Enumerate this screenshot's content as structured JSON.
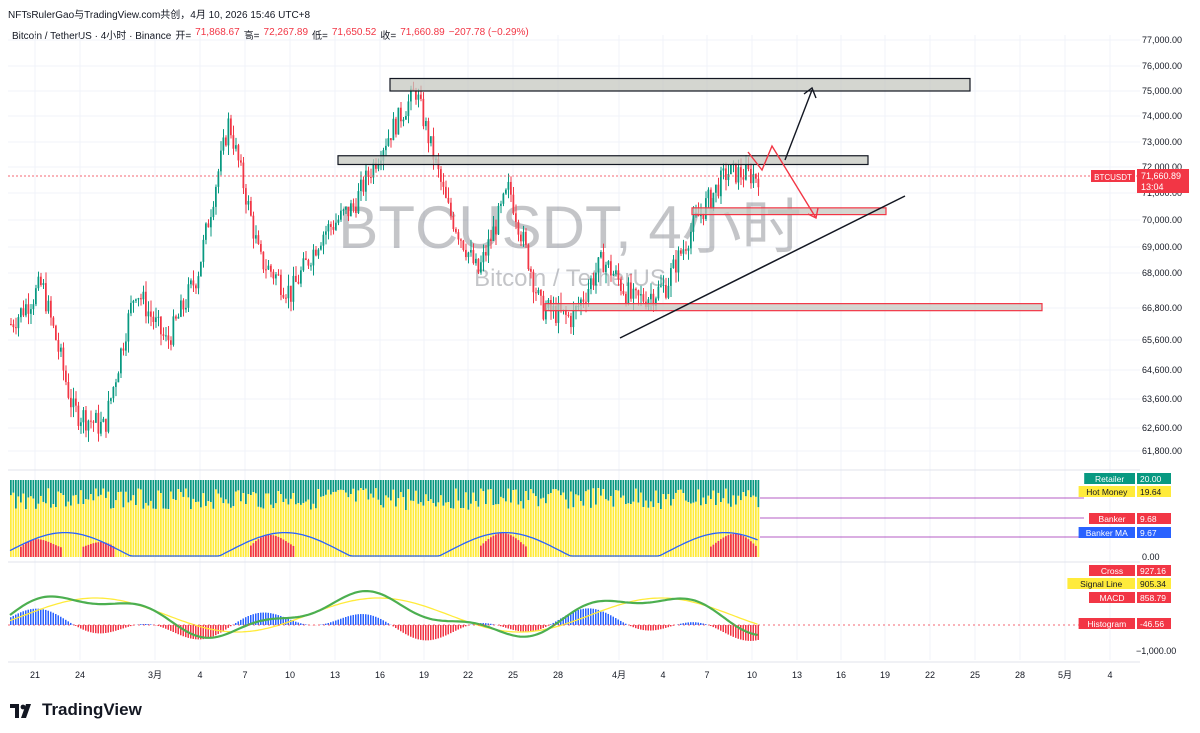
{
  "header": {
    "publisher_line": "NFTsRulerGao与TradingView.com共创，4月 10, 2026 15:46 UTC+8"
  },
  "symbol_bar": {
    "symbol": "Bitcoin / TetherUS · 4小时 · Binance",
    "open_label": "开=",
    "open_value": "71,868.67",
    "high_label": "高=",
    "high_value": "72,267.89",
    "low_label": "低=",
    "low_value": "71,650.52",
    "close_label": "收=",
    "close_value": "71,660.89",
    "change": "−207.78 (−0.29%)"
  },
  "watermark": {
    "main": "BTCUSDT, 4小时",
    "sub": "Bitcoin / TetherUS"
  },
  "price_badge": {
    "symbol": "BTCUSDT",
    "price": "71,660.89",
    "countdown": "13:04"
  },
  "brand": "TradingView",
  "colors": {
    "up": "#089981",
    "down": "#f23645",
    "zone_fill": "#c5c8c0",
    "zone_border": "#131722",
    "zone_border_red": "#f23645"
  },
  "chart_data": [
    {
      "type": "candlestick",
      "title": "Bitcoin / TetherUS · 4小时 · Binance",
      "y_axis_ticks": [
        "77,000.00",
        "76,000.00",
        "75,000.00",
        "74,000.00",
        "73,000.00",
        "72,000.00",
        "71,000.00",
        "70,000.00",
        "69,000.00",
        "68,000.00",
        "66,800.00",
        "65,600.00",
        "64,600.00",
        "63,600.00",
        "62,600.00",
        "61,800.00"
      ],
      "x_axis_ticks": [
        "21",
        "24",
        "3月",
        "4",
        "7",
        "10",
        "13",
        "16",
        "19",
        "22",
        "25",
        "28",
        "4月",
        "4",
        "7",
        "10",
        "13",
        "16",
        "19",
        "22",
        "25",
        "28",
        "5月",
        "4"
      ],
      "price_path_approx": [
        {
          "date": "2月20",
          "close": 66200
        },
        {
          "date": "2月22",
          "close": 67600
        },
        {
          "date": "2月24",
          "close": 63200
        },
        {
          "date": "2月25",
          "close": 62600
        },
        {
          "date": "2月27",
          "close": 67500
        },
        {
          "date": "3月1",
          "close": 65500
        },
        {
          "date": "3月3",
          "close": 68000
        },
        {
          "date": "3月5",
          "close": 73800
        },
        {
          "date": "3月7",
          "close": 68500
        },
        {
          "date": "3月9",
          "close": 67300
        },
        {
          "date": "3月11",
          "close": 69500
        },
        {
          "date": "3月13",
          "close": 70500
        },
        {
          "date": "3月16",
          "close": 73000
        },
        {
          "date": "3月17",
          "close": 75000
        },
        {
          "date": "3月19",
          "close": 70500
        },
        {
          "date": "3月22",
          "close": 68000
        },
        {
          "date": "3月25",
          "close": 71200
        },
        {
          "date": "3月27",
          "close": 66800
        },
        {
          "date": "3月29",
          "close": 66400
        },
        {
          "date": "4月1",
          "close": 68500
        },
        {
          "date": "4月3",
          "close": 67000
        },
        {
          "date": "4月5",
          "close": 67500
        },
        {
          "date": "4月7",
          "close": 70000
        },
        {
          "date": "4月8",
          "close": 71800
        },
        {
          "date": "4月10",
          "close": 71660.89
        }
      ],
      "zones": [
        {
          "type": "resistance",
          "from": 75000,
          "to": 75500
        },
        {
          "type": "resistance",
          "from": 72100,
          "to": 72450
        },
        {
          "type": "support",
          "from": 70200,
          "to": 70450
        },
        {
          "type": "support",
          "from": 66700,
          "to": 66950
        }
      ],
      "annotations": [
        "trendline support",
        "upward projection arrow to 75,000",
        "downward projection arrow to 70,200"
      ],
      "current_price": 71660.89
    },
    {
      "type": "bar",
      "title": "Banker / Hot Money indicator",
      "series": [
        {
          "name": "Retailer",
          "value": 20.0,
          "color": "#089981"
        },
        {
          "name": "Hot Money",
          "value": 19.64,
          "color": "#ffeb3b"
        },
        {
          "name": "Banker",
          "value": 9.68,
          "color": "#f23645"
        },
        {
          "name": "Banker MA",
          "value": 9.67,
          "color": "#2962ff"
        }
      ],
      "y_axis_ticks": [
        "0.00"
      ]
    },
    {
      "type": "line",
      "title": "MACD",
      "series": [
        {
          "name": "Cross",
          "value": 927.16,
          "color": "#f23645"
        },
        {
          "name": "Signal Line",
          "value": 905.34,
          "color": "#ffeb3b"
        },
        {
          "name": "MACD",
          "value": 858.79,
          "color": "#f23645"
        },
        {
          "name": "Histogram",
          "value": -46.56,
          "color": "#f23645"
        }
      ],
      "y_axis_ticks": [
        "−1,000.00"
      ]
    }
  ]
}
